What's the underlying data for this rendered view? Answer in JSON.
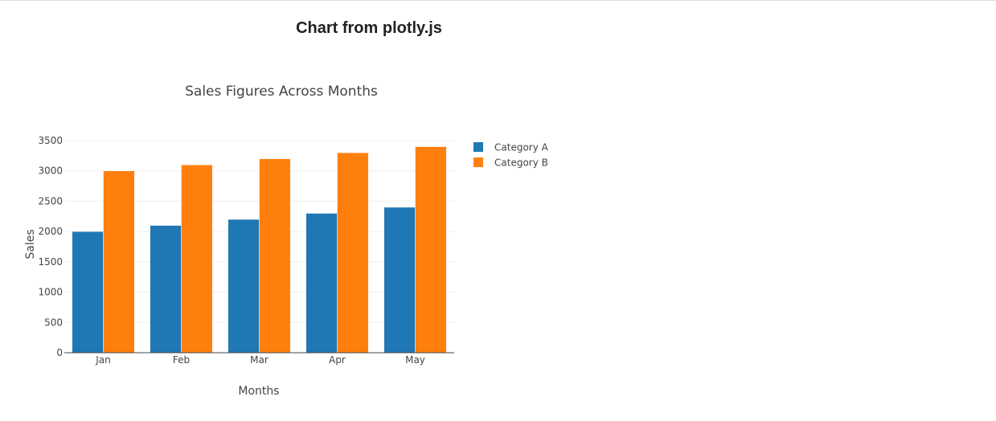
{
  "page": {
    "heading": "Chart from plotly.js"
  },
  "chart_data": {
    "type": "bar",
    "title": "Sales Figures Across Months",
    "xlabel": "Months",
    "ylabel": "Sales",
    "categories": [
      "Jan",
      "Feb",
      "Mar",
      "Apr",
      "May"
    ],
    "series": [
      {
        "name": "Category A",
        "values": [
          2000,
          2100,
          2200,
          2300,
          2400
        ],
        "color": "#1f77b4"
      },
      {
        "name": "Category B",
        "values": [
          3000,
          3100,
          3200,
          3300,
          3400
        ],
        "color": "#ff7f0e"
      }
    ],
    "ylim": [
      0,
      3500
    ],
    "yticks": [
      0,
      500,
      1000,
      1500,
      2000,
      2500,
      3000,
      3500
    ],
    "grid": true,
    "legend_position": "top-right",
    "grid_color": "#eeeeee",
    "axis_color": "#444444"
  }
}
